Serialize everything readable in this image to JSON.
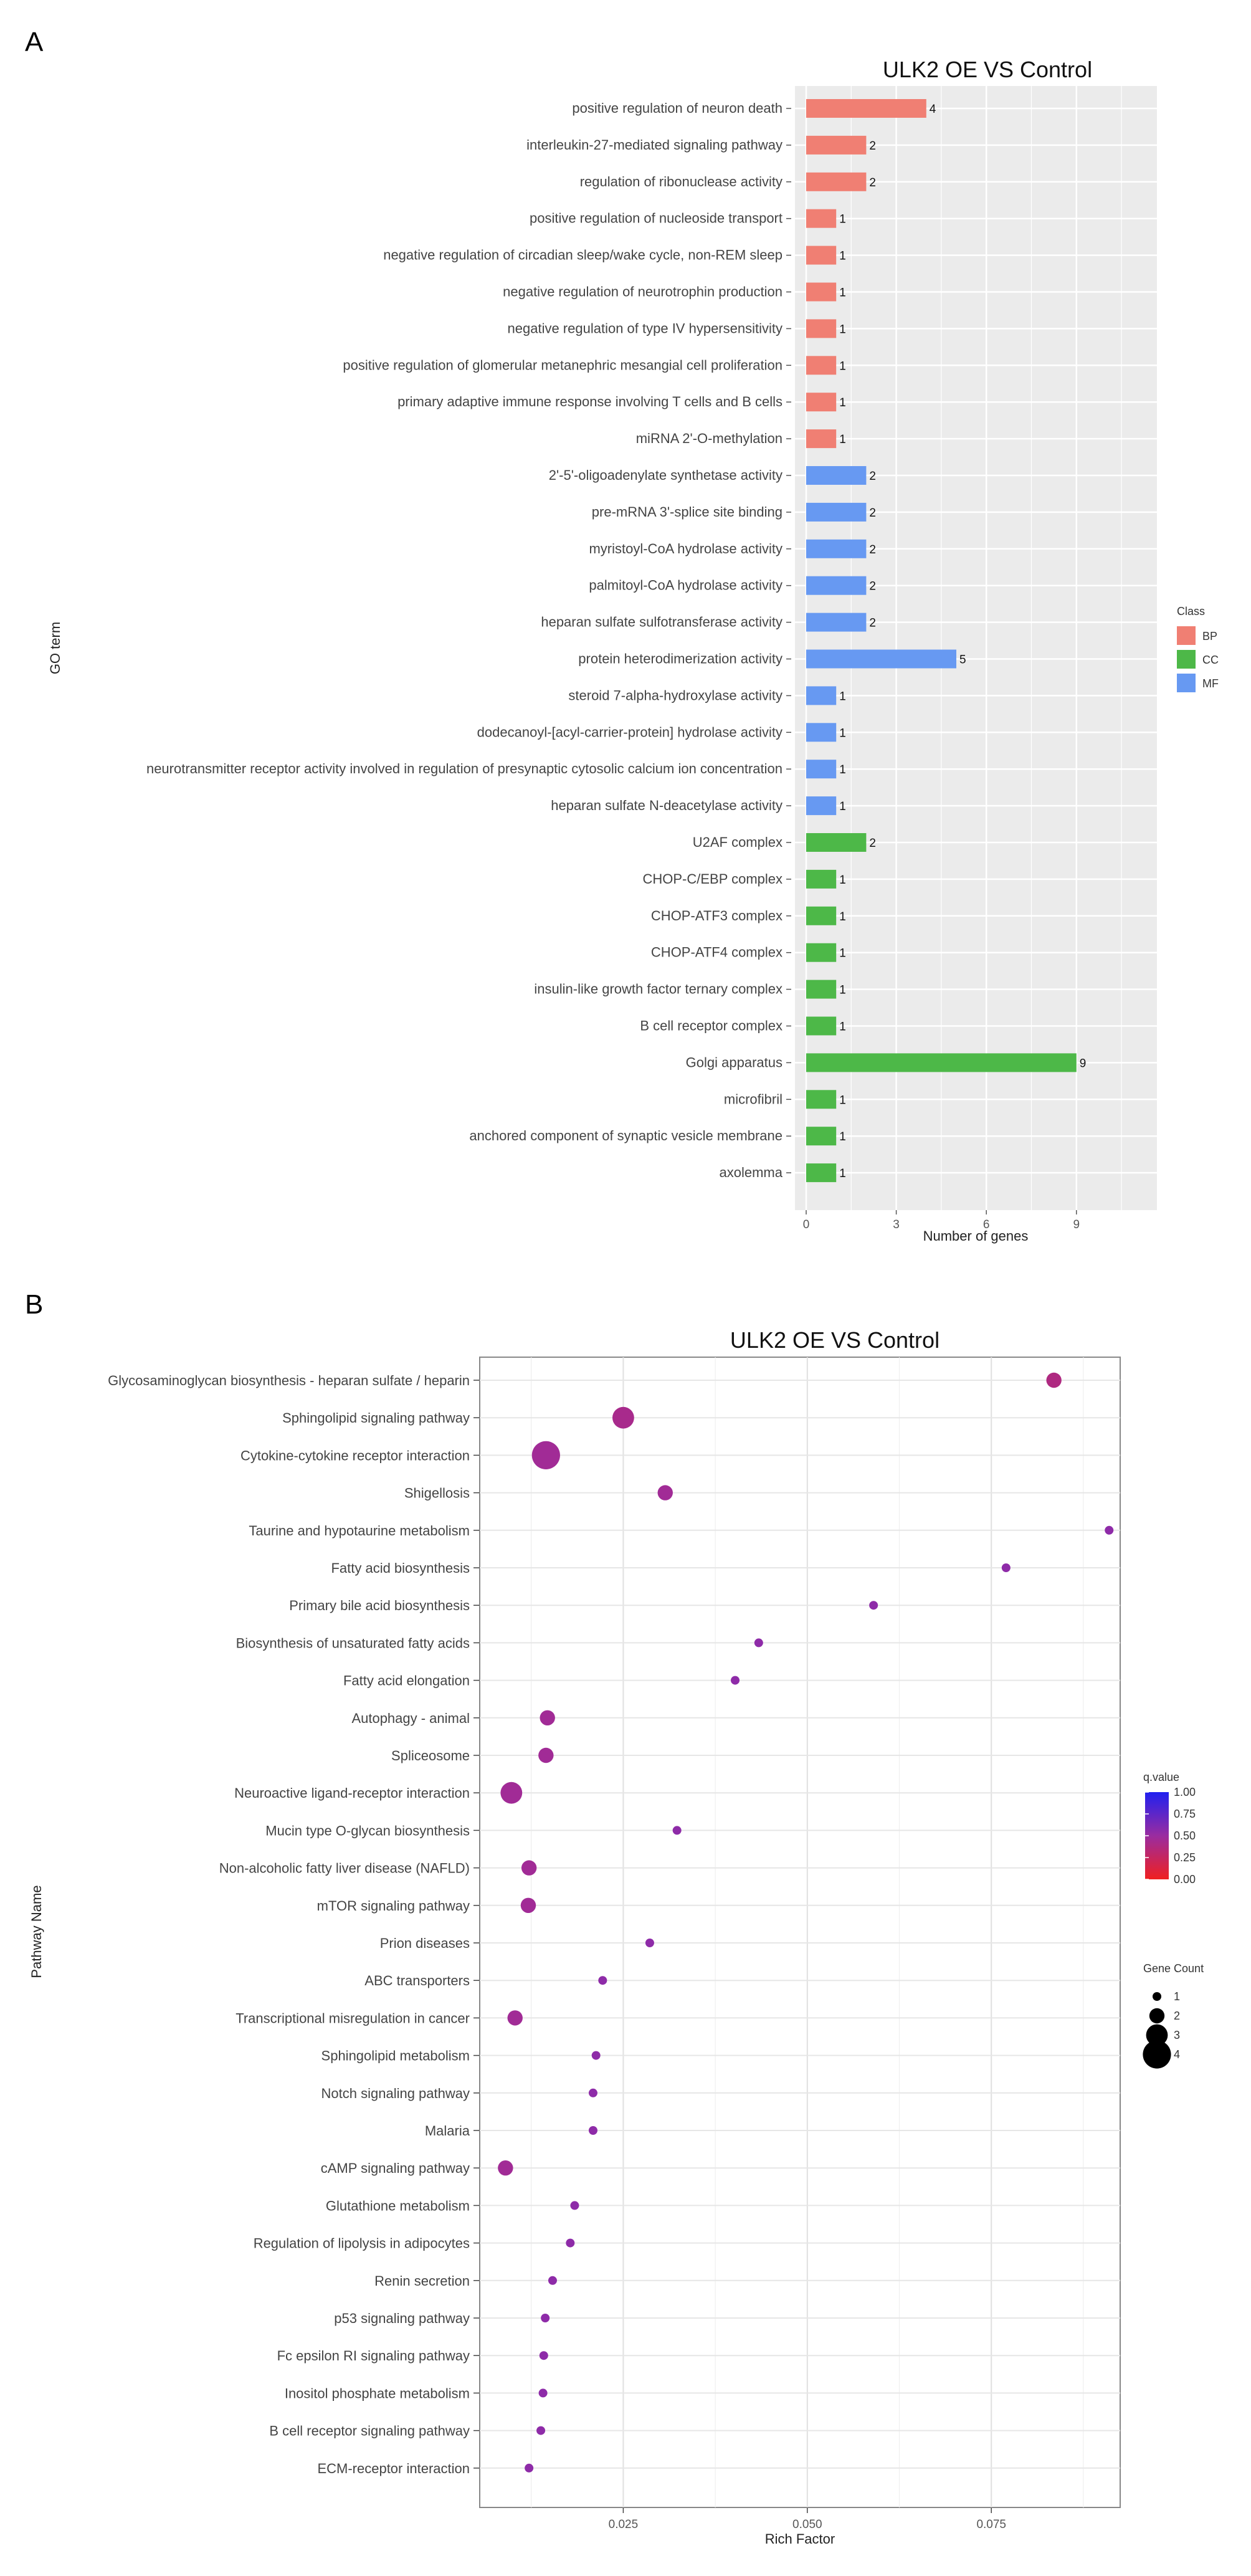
{
  "panelA": {
    "letter": "A",
    "chart_data": {
      "type": "bar",
      "title": "ULK2 OE VS Control",
      "xlabel": "Number of genes",
      "ylabel": "GO term",
      "orientation": "horizontal",
      "xlim": [
        0,
        11.5
      ],
      "xticks": [
        0,
        3,
        6,
        9
      ],
      "grid": true,
      "legend": {
        "title": "Class",
        "placement": "right",
        "entries": [
          {
            "name": "BP",
            "color": "#F07F73"
          },
          {
            "name": "CC",
            "color": "#4DB848"
          },
          {
            "name": "MF",
            "color": "#6799F2"
          }
        ]
      },
      "categories": [
        "positive regulation of neuron death",
        "interleukin-27-mediated signaling pathway",
        "regulation of ribonuclease activity",
        "positive regulation of nucleoside transport",
        "negative regulation of circadian sleep/wake cycle, non-REM sleep",
        "negative regulation of neurotrophin production",
        "negative regulation of type IV hypersensitivity",
        "positive regulation of glomerular metanephric mesangial cell proliferation",
        "primary adaptive immune response involving T cells and B cells",
        "miRNA 2'-O-methylation",
        "2'-5'-oligoadenylate synthetase activity",
        "pre-mRNA 3'-splice site binding",
        "myristoyl-CoA hydrolase activity",
        "palmitoyl-CoA hydrolase activity",
        "heparan sulfate sulfotransferase activity",
        "protein heterodimerization activity",
        "steroid 7-alpha-hydroxylase activity",
        "dodecanoyl-[acyl-carrier-protein] hydrolase activity",
        "neurotransmitter receptor activity involved in regulation of presynaptic cytosolic calcium ion concentration",
        "heparan sulfate N-deacetylase activity",
        "U2AF complex",
        "CHOP-C/EBP complex",
        "CHOP-ATF3 complex",
        "CHOP-ATF4 complex",
        "insulin-like growth factor ternary complex",
        "B cell receptor complex",
        "Golgi apparatus",
        "microfibril",
        "anchored component of synaptic vesicle membrane",
        "axolemma"
      ],
      "values": [
        4,
        2,
        2,
        1,
        1,
        1,
        1,
        1,
        1,
        1,
        2,
        2,
        2,
        2,
        2,
        5,
        1,
        1,
        1,
        1,
        2,
        1,
        1,
        1,
        1,
        1,
        9,
        1,
        1,
        1
      ],
      "classes": [
        "BP",
        "BP",
        "BP",
        "BP",
        "BP",
        "BP",
        "BP",
        "BP",
        "BP",
        "BP",
        "MF",
        "MF",
        "MF",
        "MF",
        "MF",
        "MF",
        "MF",
        "MF",
        "MF",
        "MF",
        "CC",
        "CC",
        "CC",
        "CC",
        "CC",
        "CC",
        "CC",
        "CC",
        "CC",
        "CC"
      ]
    }
  },
  "panelB": {
    "letter": "B",
    "chart_data": {
      "type": "scatter",
      "title": "ULK2 OE VS Control",
      "xlabel": "Rich Factor",
      "ylabel": "Pathway Name",
      "xlim": [
        0.0055,
        0.0925
      ],
      "xticks": [
        0.025,
        0.05,
        0.075
      ],
      "xtick_labels": [
        "0.025",
        "0.050",
        "0.075"
      ],
      "grid": true,
      "legend": {
        "placement": "right",
        "color_title": "q.value",
        "color_ticks": [
          "1.00",
          "0.75",
          "0.50",
          "0.25",
          "0.00"
        ],
        "color_low": "#F02020",
        "color_high": "#2020F0",
        "size_title": "Gene Count",
        "size_entries": [
          1,
          2,
          3,
          4
        ]
      },
      "categories": [
        "Glycosaminoglycan biosynthesis - heparan sulfate / heparin",
        "Sphingolipid signaling pathway",
        "Cytokine-cytokine receptor interaction",
        "Shigellosis",
        "Taurine and hypotaurine metabolism",
        "Fatty acid biosynthesis",
        "Primary bile acid biosynthesis",
        "Biosynthesis of unsaturated fatty acids",
        "Fatty acid elongation",
        "Autophagy - animal",
        "Spliceosome",
        "Neuroactive ligand-receptor interaction",
        "Mucin type O-glycan biosynthesis",
        "Non-alcoholic fatty liver disease (NAFLD)",
        "mTOR signaling pathway",
        "Prion diseases",
        "ABC transporters",
        "Transcriptional misregulation in cancer",
        "Sphingolipid metabolism",
        "Notch signaling pathway",
        "Malaria",
        "cAMP signaling pathway",
        "Glutathione metabolism",
        "Regulation of lipolysis in adipocytes",
        "Renin secretion",
        "p53 signaling pathway",
        "Fc epsilon RI signaling pathway",
        "Inositol phosphate metabolism",
        "B cell receptor signaling pathway",
        "ECM-receptor interaction"
      ],
      "rich_factor": [
        0.0835,
        0.025,
        0.0145,
        0.0307,
        0.091,
        0.077,
        0.059,
        0.0434,
        0.0402,
        0.0147,
        0.0145,
        0.0098,
        0.0323,
        0.0122,
        0.0121,
        0.0286,
        0.0222,
        0.0103,
        0.0213,
        0.0209,
        0.0209,
        0.009,
        0.0184,
        0.0178,
        0.0154,
        0.0144,
        0.0142,
        0.0141,
        0.0138,
        0.0122
      ],
      "gene_count": [
        2,
        3,
        4,
        2,
        1,
        1,
        1,
        1,
        1,
        2,
        2,
        3,
        1,
        2,
        2,
        1,
        1,
        2,
        1,
        1,
        1,
        2,
        1,
        1,
        1,
        1,
        1,
        1,
        1,
        1
      ],
      "q_value": [
        0.38,
        0.42,
        0.46,
        0.46,
        0.55,
        0.55,
        0.55,
        0.55,
        0.55,
        0.46,
        0.46,
        0.46,
        0.55,
        0.46,
        0.46,
        0.55,
        0.55,
        0.46,
        0.55,
        0.55,
        0.55,
        0.46,
        0.55,
        0.55,
        0.55,
        0.55,
        0.55,
        0.55,
        0.55,
        0.55
      ]
    }
  }
}
